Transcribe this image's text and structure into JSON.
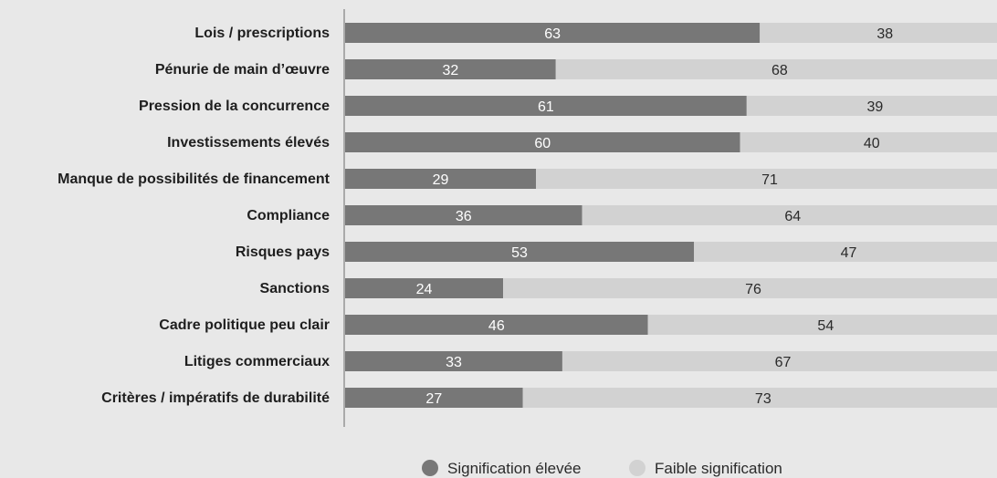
{
  "colors": {
    "background": "#e8e8e8",
    "high": "#777777",
    "low": "#d2d2d2",
    "axis": "#aaaaaa"
  },
  "chart_data": {
    "type": "bar",
    "orientation": "horizontal",
    "stacked": true,
    "title": "",
    "xlabel": "",
    "ylabel": "",
    "xlim": [
      0,
      100
    ],
    "grid": false,
    "legend_position": "bottom-center",
    "categories": [
      "Lois / prescriptions",
      "Pénurie de main d’œuvre",
      "Pression de la concurrence",
      "Investissements élevés",
      "Manque de possibilités de financement",
      "Compliance",
      "Risques pays",
      "Sanctions",
      "Cadre politique peu clair",
      "Litiges commerciaux",
      "Critères / impératifs de durabilité"
    ],
    "series": [
      {
        "name": "Signification élevée",
        "color": "#777777",
        "values": [
          63,
          32,
          61,
          60,
          29,
          36,
          53,
          24,
          46,
          33,
          27
        ]
      },
      {
        "name": "Faible signification",
        "color": "#d2d2d2",
        "values": [
          38,
          68,
          39,
          40,
          71,
          64,
          47,
          76,
          54,
          67,
          73
        ]
      }
    ]
  }
}
